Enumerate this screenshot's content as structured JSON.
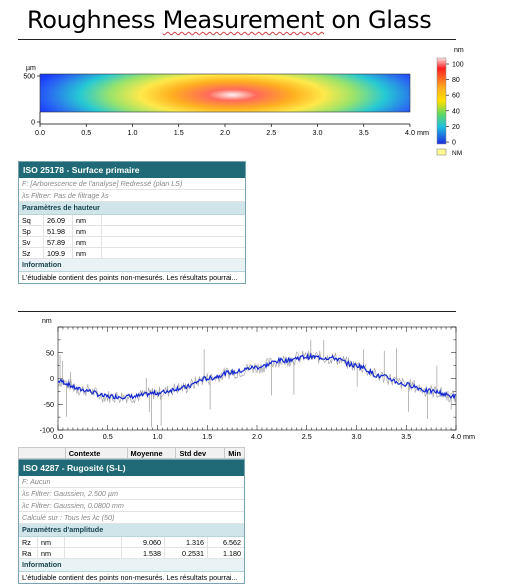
{
  "title": {
    "part1": "Roughness ",
    "part2": "Measurement",
    "part3": " on Glass"
  },
  "topo": {
    "y_unit": "µm",
    "y_ticks": [
      "500",
      "0"
    ],
    "x_ticks": [
      "0.0",
      "0.5",
      "1.0",
      "1.5",
      "2.0",
      "2.5",
      "3.0",
      "3.5",
      "4.0 mm"
    ],
    "colorbar_unit": "nm",
    "colorbar_ticks": [
      "100",
      "80",
      "60",
      "40",
      "20",
      "0"
    ],
    "nm_label": "NM",
    "colors": {
      "low": "#1a3cff",
      "mid": "#ffe000",
      "high": "#ff2020",
      "peak": "#ffe8e8"
    }
  },
  "panel1": {
    "header": "ISO 25178 - Surface primaire",
    "filter_f": "F: [Arborescence de l'analyse] Redressé (plan LS)",
    "filter_ls": "λs Filtrer: Pas de filtrage λs",
    "section": "Paramètres de hauteur",
    "rows": [
      {
        "name": "Sq",
        "value": "26.09",
        "unit": "nm"
      },
      {
        "name": "Sp",
        "value": "51.98",
        "unit": "nm"
      },
      {
        "name": "Sv",
        "value": "57.89",
        "unit": "nm"
      },
      {
        "name": "Sz",
        "value": "109.9",
        "unit": "nm"
      }
    ],
    "info_label": "Information",
    "info_text": "L'étudiable contient des points non-mesurés. Les résultats pourrai..."
  },
  "profile": {
    "y_unit": "nm",
    "y_ticks": [
      "50",
      "0",
      "-50",
      "-100"
    ],
    "x_ticks": [
      "0.0",
      "0.5",
      "1.0",
      "1.5",
      "2.0",
      "2.5",
      "3.0",
      "3.5",
      "4.0 mm"
    ],
    "colors": {
      "mean": "#1428d2",
      "raw": "#a8a8a8"
    },
    "chart_data": {
      "type": "line",
      "x": [
        0.0,
        0.25,
        0.5,
        0.75,
        1.0,
        1.25,
        1.5,
        1.75,
        2.0,
        2.25,
        2.5,
        2.75,
        3.0,
        3.25,
        3.5,
        3.75,
        4.0
      ],
      "series": [
        {
          "values": [
            -5,
            -22,
            -35,
            -35,
            -28,
            -18,
            0,
            12,
            22,
            35,
            42,
            40,
            25,
            4,
            -12,
            -25,
            -35
          ]
        }
      ],
      "xlim": [
        0,
        4.0
      ],
      "ylim": [
        -100,
        100
      ]
    }
  },
  "stats": {
    "columns": [
      "Contexte",
      "Moyenne",
      "Std dev",
      "Min"
    ]
  },
  "panel2": {
    "header": "ISO 4287 - Rugosité (S-L)",
    "filter_f": "F: Aucun",
    "filter_ls": "λs Filtrer: Gaussien, 2.500 µm",
    "filter_lc": "λc Filtrer: Gaussien, 0.0800 mm",
    "calc": "Calculé sur : Tous les λc (50)",
    "section": "Paramètres d'amplitude",
    "rows": [
      {
        "name": "Rz",
        "unit": "nm",
        "mean": "9.060",
        "std": "1.316",
        "min": "6.562"
      },
      {
        "name": "Ra",
        "unit": "nm",
        "mean": "1.538",
        "std": "0.2531",
        "min": "1.180"
      }
    ],
    "info_label": "Information",
    "info_text": "L'étudiable contient des points non-mesurés. Les résultats pourrai..."
  }
}
